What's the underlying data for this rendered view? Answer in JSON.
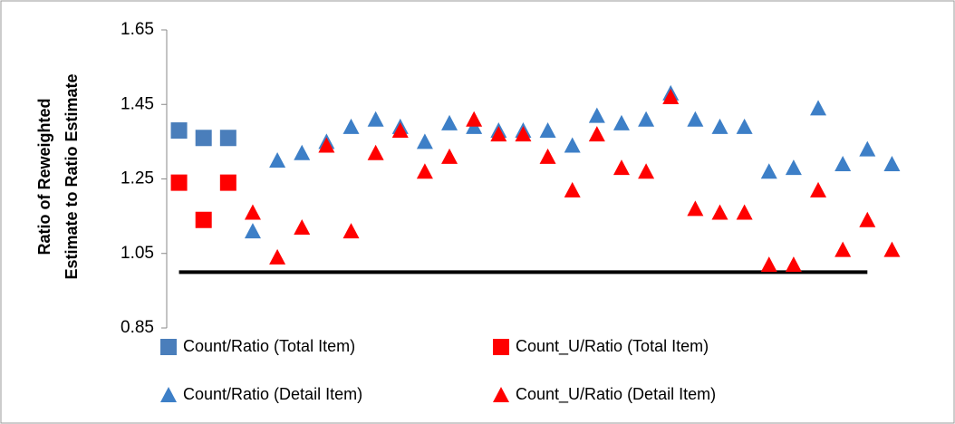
{
  "chart_data": {
    "type": "scatter",
    "y_label": [
      "Ratio of Reweighted",
      "Estimate to Ratio Estimate"
    ],
    "categories": [
      null,
      null,
      null,
      null,
      null,
      null,
      null,
      null,
      null,
      null,
      null,
      null,
      null,
      null,
      null,
      null,
      null,
      null,
      null,
      null,
      null,
      null,
      null,
      null,
      null,
      null,
      null,
      null,
      null,
      null
    ],
    "ylim": [
      0.85,
      1.65
    ],
    "yticks": [
      0.85,
      1.05,
      1.25,
      1.45,
      1.65
    ],
    "reference_line": 1.0,
    "series": [
      {
        "name": "Count/Ratio (Total Item)",
        "color": "#4a7ebb",
        "marker": "square",
        "values": [
          1.38,
          1.36,
          1.36,
          null,
          null,
          null,
          null,
          null,
          null,
          null,
          null,
          null,
          null,
          null,
          null,
          null,
          null,
          null,
          null,
          null,
          null,
          null,
          null,
          null,
          null,
          null,
          null,
          null,
          null,
          null
        ]
      },
      {
        "name": "Count_U/Ratio (Total Item)",
        "color": "#ff0000",
        "marker": "square",
        "values": [
          1.24,
          1.14,
          1.24,
          null,
          null,
          null,
          null,
          null,
          null,
          null,
          null,
          null,
          null,
          null,
          null,
          null,
          null,
          null,
          null,
          null,
          null,
          null,
          null,
          null,
          null,
          null,
          null,
          null,
          null,
          null
        ]
      },
      {
        "name": "Count/Ratio (Detail Item)",
        "color": "#3d7fc7",
        "marker": "triangle",
        "values": [
          null,
          null,
          null,
          1.11,
          1.3,
          1.32,
          1.35,
          1.39,
          1.41,
          1.39,
          1.35,
          1.4,
          1.39,
          1.38,
          1.38,
          1.38,
          1.34,
          1.42,
          1.4,
          1.41,
          1.48,
          1.41,
          1.39,
          1.39,
          1.27,
          1.28,
          1.44,
          1.29,
          1.33,
          1.29
        ]
      },
      {
        "name": "Count_U/Ratio (Detail Item)",
        "color": "#ff0000",
        "marker": "triangle",
        "values": [
          null,
          null,
          null,
          1.16,
          1.04,
          1.12,
          1.34,
          1.11,
          1.32,
          1.38,
          1.27,
          1.31,
          1.41,
          1.37,
          1.37,
          1.31,
          1.22,
          1.37,
          1.28,
          1.27,
          1.47,
          1.17,
          1.16,
          1.16,
          1.02,
          1.02,
          1.22,
          1.06,
          1.14,
          1.06
        ]
      }
    ]
  }
}
